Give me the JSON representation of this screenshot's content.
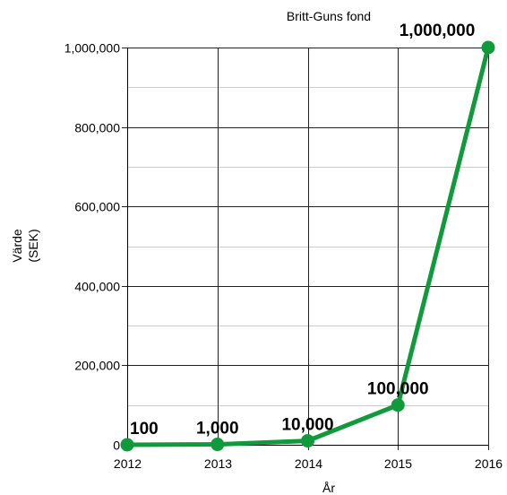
{
  "chart_data": {
    "type": "line",
    "title": "Britt-Guns fond",
    "xlabel": "År",
    "ylabel_lines": [
      "Värde",
      "(SEK)"
    ],
    "x": [
      2012,
      2013,
      2014,
      2015,
      2016
    ],
    "x_tick_labels": [
      "2012",
      "2013",
      "2014",
      "2015",
      "2016"
    ],
    "y_tick_values": [
      0,
      200000,
      400000,
      600000,
      800000,
      1000000
    ],
    "y_tick_labels": [
      "0",
      "200,000",
      "400,000",
      "600,000",
      "800,000",
      "1,000,000"
    ],
    "series": [
      {
        "values": [
          100,
          1000,
          10000,
          100000,
          1000000
        ],
        "data_labels": [
          "100",
          "1,000",
          "10,000",
          "100,000",
          "1,000,000"
        ],
        "color": "#109a3c"
      }
    ],
    "xlim": [
      2012,
      2016
    ],
    "ylim": [
      0,
      1000000
    ],
    "grid": true,
    "minor_grid": true,
    "legend": "none"
  }
}
